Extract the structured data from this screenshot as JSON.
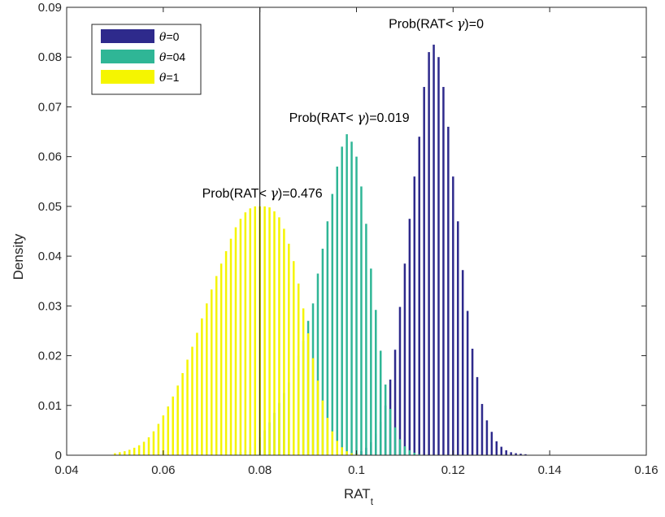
{
  "chart_data": {
    "type": "bar",
    "xlabel": "RAT",
    "xlabel_sub": "t",
    "ylabel": "Density",
    "xlim": [
      0.04,
      0.16
    ],
    "ylim": [
      0,
      0.09
    ],
    "x_ticks": [
      "0.04",
      "0.06",
      "0.08",
      "0.1",
      "0.12",
      "0.14",
      "0.16"
    ],
    "y_ticks": [
      "0",
      "0.01",
      "0.02",
      "0.03",
      "0.04",
      "0.05",
      "0.06",
      "0.07",
      "0.08",
      "0.09"
    ],
    "threshold_x": 0.08,
    "grid": false,
    "legend_position": "top-left",
    "series": [
      {
        "name": "θ=0",
        "legend_symbol": "θ",
        "legend_text": "=0",
        "color": "#2E2A8C",
        "bin_width": 0.001,
        "x": [
          0.099,
          0.1,
          0.101,
          0.102,
          0.103,
          0.104,
          0.105,
          0.106,
          0.107,
          0.108,
          0.109,
          0.11,
          0.111,
          0.112,
          0.113,
          0.114,
          0.115,
          0.116,
          0.117,
          0.118,
          0.119,
          0.12,
          0.121,
          0.122,
          0.123,
          0.124,
          0.125,
          0.126,
          0.127,
          0.128,
          0.129,
          0.13,
          0.131,
          0.132,
          0.133,
          0.134,
          0.135
        ],
        "values": [
          0.0002,
          0.0004,
          0.0008,
          0.0015,
          0.0026,
          0.0043,
          0.0067,
          0.01,
          0.0152,
          0.0212,
          0.0298,
          0.0385,
          0.0475,
          0.056,
          0.064,
          0.074,
          0.081,
          0.0825,
          0.08,
          0.074,
          0.066,
          0.056,
          0.047,
          0.0372,
          0.029,
          0.0214,
          0.0157,
          0.0103,
          0.007,
          0.0047,
          0.0028,
          0.0017,
          0.001,
          0.0006,
          0.0004,
          0.0003,
          0.0002
        ]
      },
      {
        "name": "θ=04",
        "legend_symbol": "θ",
        "legend_text": "=04",
        "color": "#2FB696",
        "bin_width": 0.001,
        "x": [
          0.075,
          0.076,
          0.077,
          0.078,
          0.079,
          0.08,
          0.081,
          0.082,
          0.083,
          0.084,
          0.085,
          0.086,
          0.087,
          0.088,
          0.089,
          0.09,
          0.091,
          0.092,
          0.093,
          0.094,
          0.095,
          0.096,
          0.097,
          0.098,
          0.099,
          0.1,
          0.101,
          0.102,
          0.103,
          0.104,
          0.105,
          0.106,
          0.107,
          0.108,
          0.109,
          0.11,
          0.111,
          0.112,
          0.113
        ],
        "values": [
          0.0004,
          0.0006,
          0.001,
          0.0016,
          0.0024,
          0.0036,
          0.005,
          0.0066,
          0.0085,
          0.0105,
          0.0125,
          0.0146,
          0.0175,
          0.02,
          0.023,
          0.027,
          0.0305,
          0.0365,
          0.0415,
          0.047,
          0.0525,
          0.058,
          0.062,
          0.0645,
          0.063,
          0.06,
          0.054,
          0.0465,
          0.0375,
          0.0292,
          0.021,
          0.0142,
          0.0093,
          0.0056,
          0.0032,
          0.0018,
          0.001,
          0.0005,
          0.0002
        ]
      },
      {
        "name": "θ=1",
        "legend_symbol": "θ",
        "legend_text": "=1",
        "color": "#F5F500",
        "bin_width": 0.001,
        "x": [
          0.05,
          0.051,
          0.052,
          0.053,
          0.054,
          0.055,
          0.056,
          0.057,
          0.058,
          0.059,
          0.06,
          0.061,
          0.062,
          0.063,
          0.064,
          0.065,
          0.066,
          0.067,
          0.068,
          0.069,
          0.07,
          0.071,
          0.072,
          0.073,
          0.074,
          0.075,
          0.076,
          0.077,
          0.078,
          0.079,
          0.08,
          0.081,
          0.082,
          0.083,
          0.084,
          0.085,
          0.086,
          0.087,
          0.088,
          0.089,
          0.09,
          0.091,
          0.092,
          0.093,
          0.094,
          0.095,
          0.096,
          0.097,
          0.098,
          0.099,
          0.1
        ],
        "values": [
          0.0004,
          0.0006,
          0.0008,
          0.0011,
          0.0015,
          0.002,
          0.0027,
          0.0036,
          0.0048,
          0.0063,
          0.008,
          0.0098,
          0.0118,
          0.014,
          0.0165,
          0.0192,
          0.0218,
          0.0246,
          0.0275,
          0.0305,
          0.0333,
          0.036,
          0.0385,
          0.041,
          0.0435,
          0.0458,
          0.0475,
          0.0488,
          0.0496,
          0.05,
          0.05,
          0.05,
          0.0498,
          0.049,
          0.0478,
          0.0455,
          0.0425,
          0.039,
          0.0345,
          0.0295,
          0.0245,
          0.0195,
          0.015,
          0.011,
          0.0075,
          0.0048,
          0.0029,
          0.0016,
          0.0008,
          0.0004,
          0.0002
        ]
      }
    ],
    "annotations": [
      {
        "text": "Prob(RAT< γ)=0",
        "prefix": "Prob(RAT< ",
        "symbol": "γ",
        "suffix": ")=0",
        "x": 0.1165,
        "y": 0.0858
      },
      {
        "text": "Prob(RAT< γ)=0.019",
        "prefix": "Prob(RAT< ",
        "symbol": "γ",
        "suffix": ")=0.019",
        "x": 0.0985,
        "y": 0.067
      },
      {
        "text": "Prob(RAT< γ)=0.476",
        "prefix": "Prob(RAT< ",
        "symbol": "γ",
        "suffix": ")=0.476",
        "x": 0.0805,
        "y": 0.0518
      }
    ]
  }
}
